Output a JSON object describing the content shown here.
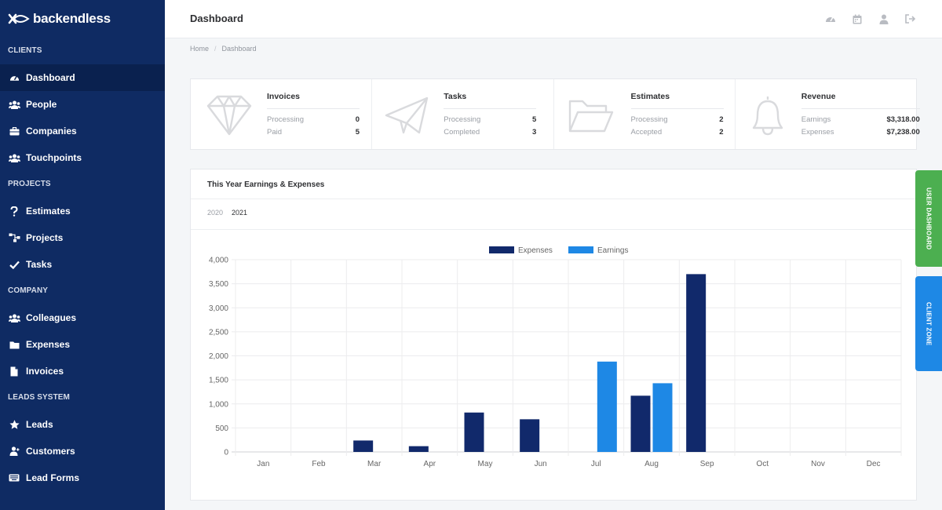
{
  "brand": {
    "name": "backendless"
  },
  "sidebar": {
    "sections": [
      {
        "title": "CLIENTS",
        "items": [
          {
            "label": "Dashboard",
            "icon": "gauge-icon",
            "active": true
          },
          {
            "label": "People",
            "icon": "people-icon"
          },
          {
            "label": "Companies",
            "icon": "briefcase-icon"
          },
          {
            "label": "Touchpoints",
            "icon": "people-group-icon"
          }
        ]
      },
      {
        "title": "PROJECTS",
        "items": [
          {
            "label": "Estimates",
            "icon": "question-icon"
          },
          {
            "label": "Projects",
            "icon": "sitemap-icon"
          },
          {
            "label": "Tasks",
            "icon": "check-icon"
          }
        ]
      },
      {
        "title": "COMPANY",
        "items": [
          {
            "label": "Colleagues",
            "icon": "people-icon"
          },
          {
            "label": "Expenses",
            "icon": "folder-icon"
          },
          {
            "label": "Invoices",
            "icon": "file-icon"
          }
        ]
      },
      {
        "title": "LEADS SYSTEM",
        "items": [
          {
            "label": "Leads",
            "icon": "star-icon"
          },
          {
            "label": "Customers",
            "icon": "user-icon"
          },
          {
            "label": "Lead Forms",
            "icon": "keyboard-icon"
          }
        ]
      }
    ]
  },
  "header": {
    "title": "Dashboard"
  },
  "breadcrumb": {
    "home": "Home",
    "current": "Dashboard"
  },
  "stats": [
    {
      "title": "Invoices",
      "icon": "diamond-icon",
      "rows": [
        {
          "label": "Processing",
          "value": "0"
        },
        {
          "label": "Paid",
          "value": "5"
        }
      ]
    },
    {
      "title": "Tasks",
      "icon": "paper-plane-icon",
      "rows": [
        {
          "label": "Processing",
          "value": "5"
        },
        {
          "label": "Completed",
          "value": "3"
        }
      ]
    },
    {
      "title": "Estimates",
      "icon": "folder-open-icon",
      "rows": [
        {
          "label": "Processing",
          "value": "2"
        },
        {
          "label": "Accepted",
          "value": "2"
        }
      ]
    },
    {
      "title": "Revenue",
      "icon": "bell-icon",
      "rows": [
        {
          "label": "Earnings",
          "value": "$3,318.00"
        },
        {
          "label": "Expenses",
          "value": "$7,238.00"
        }
      ]
    }
  ],
  "card": {
    "title": "This Year Earnings & Expenses",
    "years": [
      "2020",
      "2021"
    ],
    "selected_year": "2021"
  },
  "side_tabs": {
    "user": "USER DASHBOARD",
    "client": "CLIENT ZONE"
  },
  "colors": {
    "sidebar": "#0f2b63",
    "expenses": "#11296b",
    "earnings": "#1e88e5",
    "user_tab": "#4caf50",
    "client_tab": "#1e88e5"
  },
  "chart_data": {
    "type": "bar",
    "categories": [
      "Jan",
      "Feb",
      "Mar",
      "Apr",
      "May",
      "Jun",
      "Jul",
      "Aug",
      "Sep",
      "Oct",
      "Nov",
      "Dec"
    ],
    "series": [
      {
        "name": "Expenses",
        "color": "#11296b",
        "values": [
          0,
          0,
          238,
          120,
          820,
          680,
          0,
          1170,
          3700,
          0,
          0,
          0
        ]
      },
      {
        "name": "Earnings",
        "color": "#1e88e5",
        "values": [
          0,
          0,
          0,
          0,
          0,
          0,
          1880,
          1430,
          0,
          0,
          0,
          0
        ]
      }
    ],
    "ylim": [
      0,
      4000
    ],
    "yticks": [
      "0",
      "500",
      "1,000",
      "1,500",
      "2,000",
      "2,500",
      "3,000",
      "3,500",
      "4,000"
    ],
    "grid": true,
    "legend": "top-center"
  }
}
